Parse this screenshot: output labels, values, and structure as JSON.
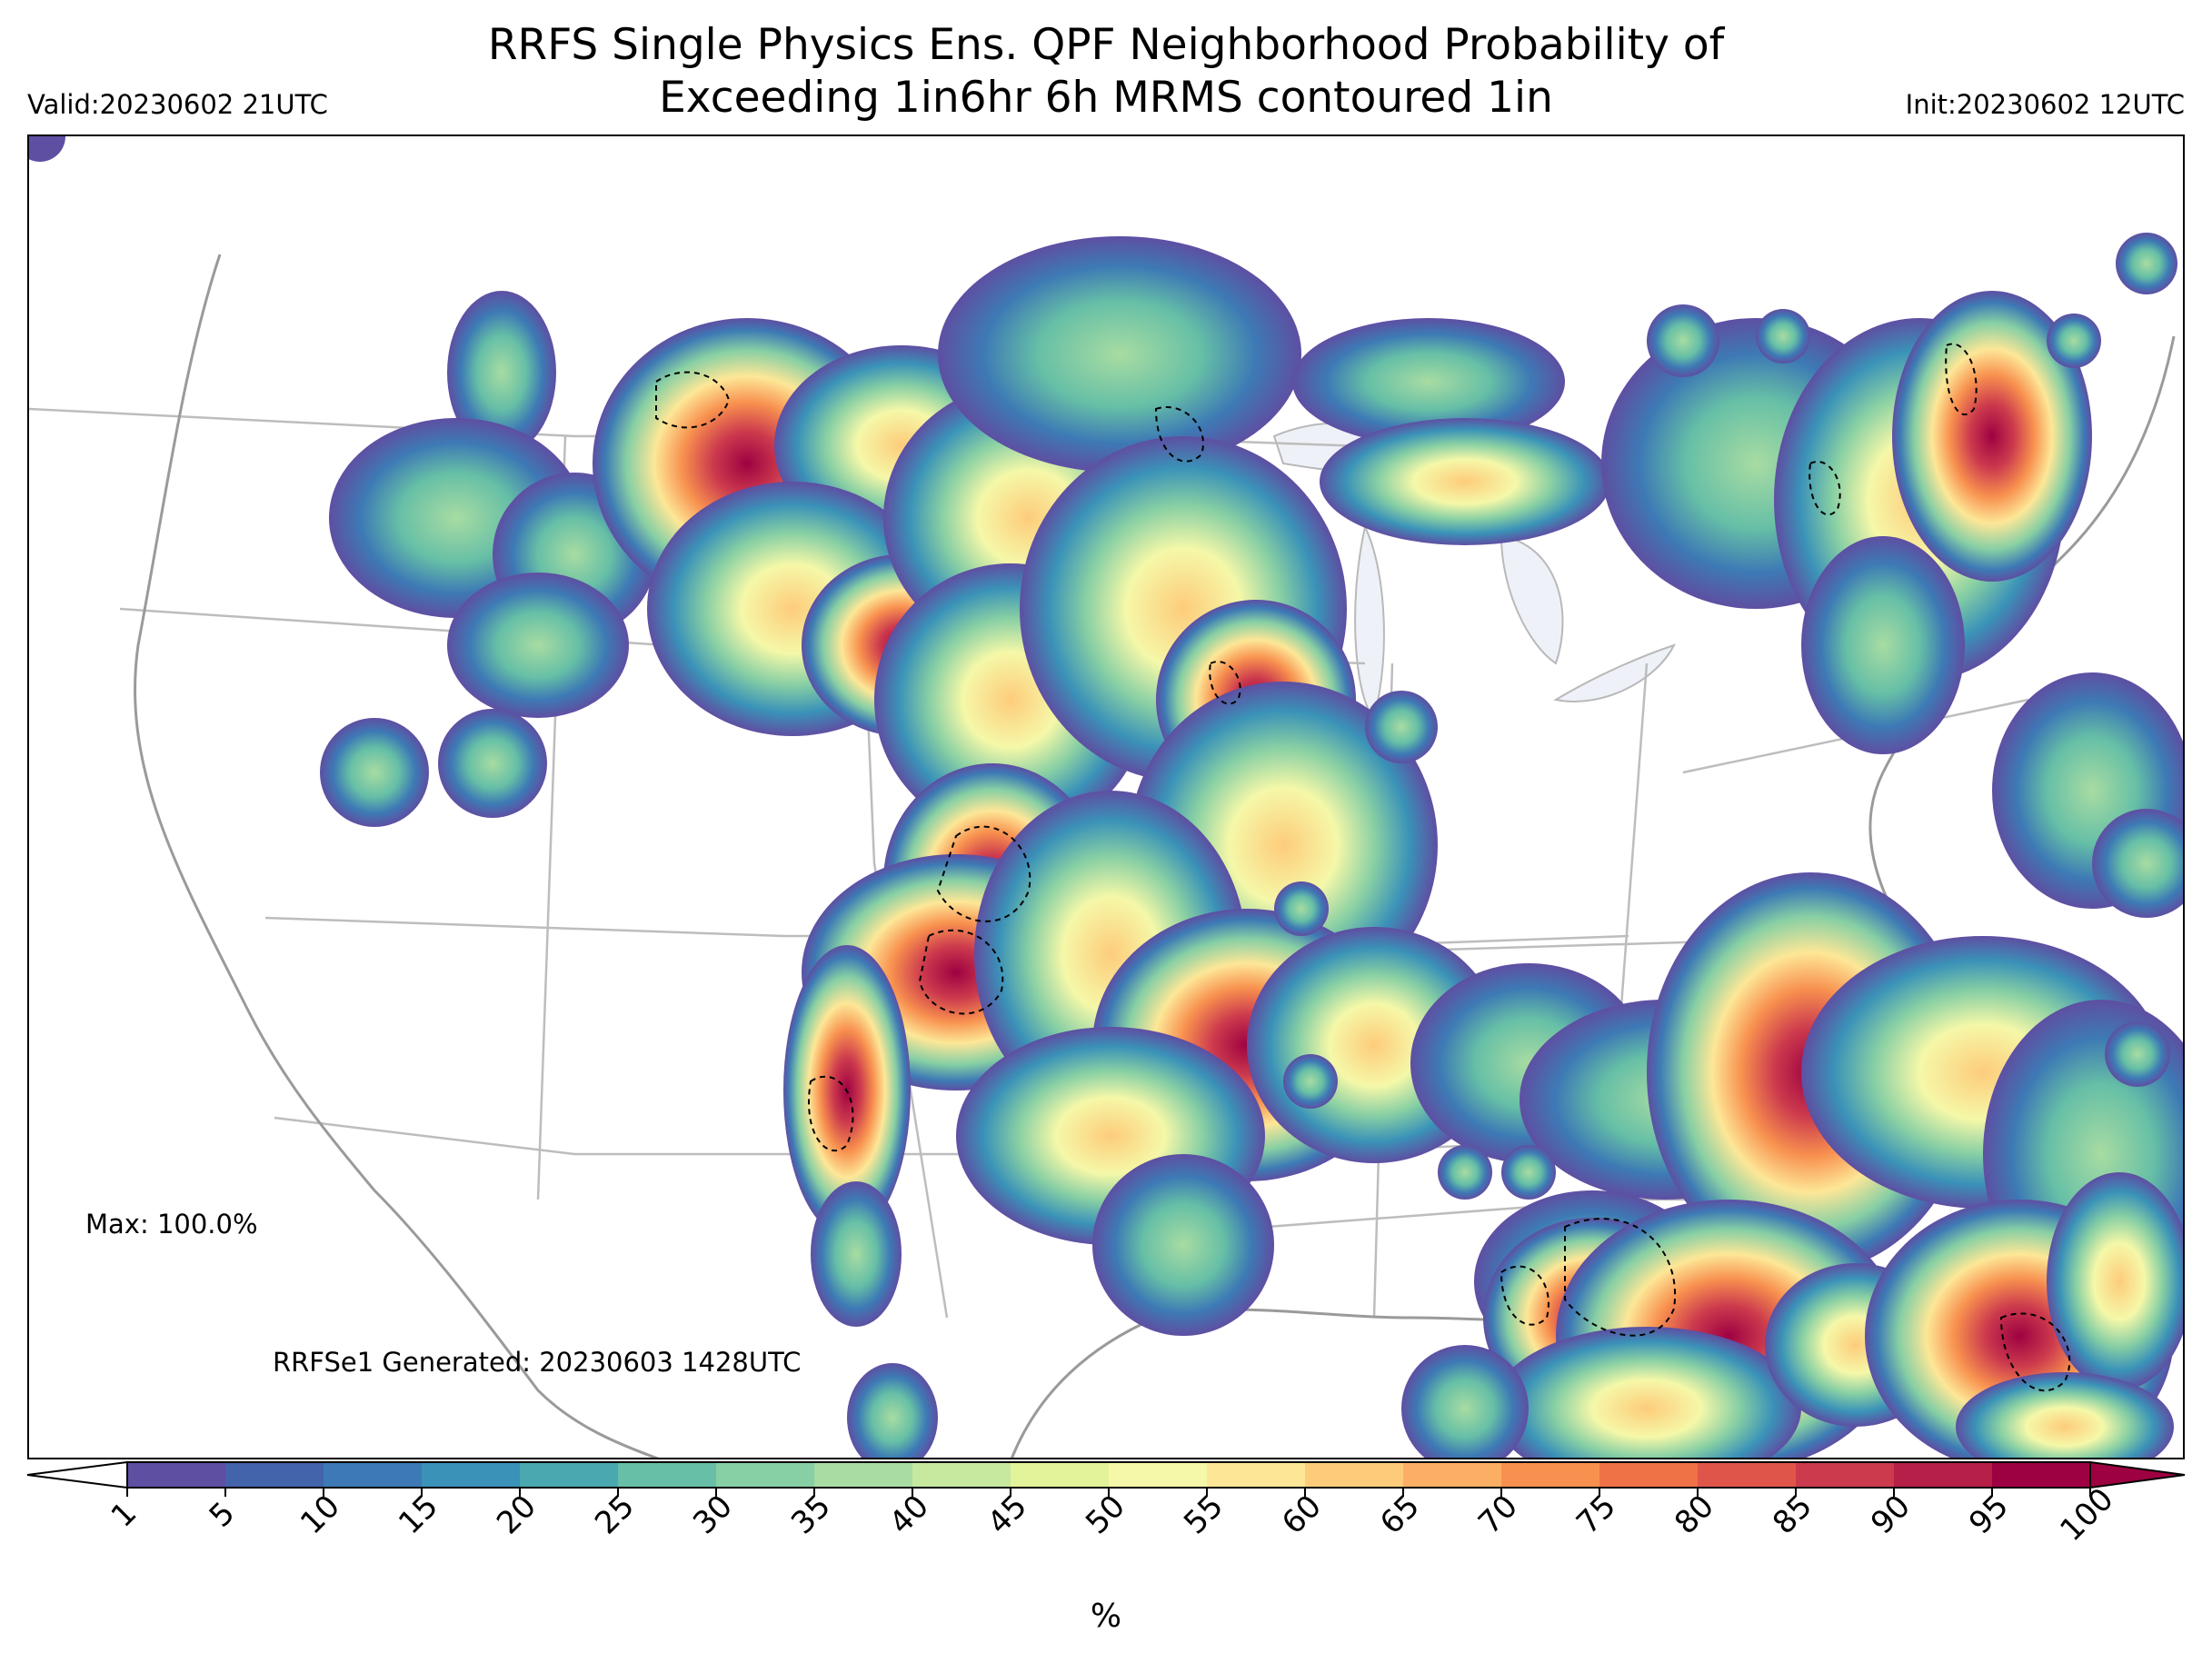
{
  "header": {
    "title_line1": "RRFS Single Physics Ens. QPF Neighborhood Probability of",
    "title_line2": "Exceeding 1in6hr 6h MRMS contoured 1in",
    "valid": "Valid:20230602 21UTC",
    "init": "Init:20230602 12UTC"
  },
  "annotations": {
    "max": "Max: 100.0%",
    "generated": "RRFSe1 Generated: 20230603 1428UTC"
  },
  "colorbar": {
    "unit": "%",
    "extend": "both",
    "levels": [
      1,
      5,
      10,
      15,
      20,
      25,
      30,
      35,
      40,
      45,
      50,
      55,
      60,
      65,
      70,
      75,
      80,
      85,
      90,
      95,
      100
    ],
    "tick_labels": [
      "1",
      "5",
      "10",
      "15",
      "20",
      "25",
      "30",
      "35",
      "40",
      "45",
      "50",
      "55",
      "60",
      "65",
      "70",
      "75",
      "80",
      "85",
      "90",
      "95",
      "100"
    ],
    "colors": [
      "#5e4fa2",
      "#4363ab",
      "#3d7ab5",
      "#3a92b8",
      "#4aa8b0",
      "#66bfa6",
      "#87cfa4",
      "#a8dca2",
      "#c6e89f",
      "#e2f39a",
      "#f5f8a8",
      "#fde797",
      "#fdcc7b",
      "#fcaf64",
      "#f8914f",
      "#ef7246",
      "#e05549",
      "#cc3a4d",
      "#b51f48",
      "#9e0142"
    ],
    "under_color": "#ffffff",
    "over_color": "#9e0142"
  },
  "map": {
    "projection": "Lambert Conformal, CONUS",
    "field": "neighborhood probability of 6h QPF exceeding 1 inch (%)",
    "overlay": "MRMS 1in contour (black dashed)",
    "max_value_pct": 100.0
  }
}
